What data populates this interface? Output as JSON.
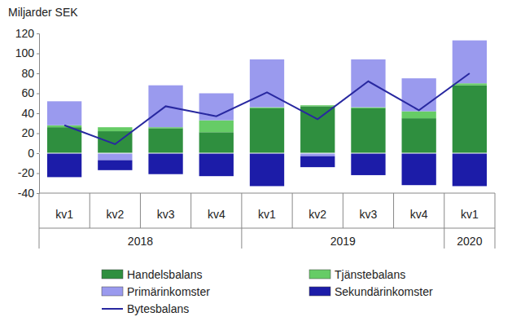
{
  "chart_data": {
    "type": "bar",
    "stacked": true,
    "y_label": "Miljarder SEK",
    "categories": [
      "kv1",
      "kv2",
      "kv3",
      "kv4",
      "kv1",
      "kv2",
      "kv3",
      "kv4",
      "kv1"
    ],
    "category_groups": [
      "2018",
      "2018",
      "2018",
      "2018",
      "2019",
      "2019",
      "2019",
      "2019",
      "2020"
    ],
    "ylim": [
      -40,
      120
    ],
    "yticks": [
      -40,
      -20,
      0,
      20,
      40,
      60,
      80,
      100,
      120
    ],
    "grid": false,
    "legend": "bottom",
    "series": [
      {
        "name": "Handelsbalans",
        "type": "bar",
        "color": "#2f8f3f",
        "values": [
          26,
          22,
          25,
          21,
          45,
          47,
          45,
          35,
          68
        ]
      },
      {
        "name": "Tjänstebalans",
        "type": "bar",
        "color": "#66cc66",
        "values": [
          2,
          4,
          1,
          12,
          1,
          1,
          1,
          7,
          2
        ]
      },
      {
        "name": "Primärinkomster",
        "type": "bar",
        "color": "#9a9aee",
        "values": [
          24,
          -7,
          42,
          27,
          48,
          -3,
          48,
          33,
          43
        ]
      },
      {
        "name": "Sekundärinkomster",
        "type": "bar",
        "color": "#1c1ca8",
        "values": [
          -24,
          -10,
          -21,
          -23,
          -33,
          -11,
          -22,
          -32,
          -33
        ]
      },
      {
        "name": "Bytesbalans",
        "type": "line",
        "color": "#2828a0",
        "values": [
          28,
          9,
          47,
          37,
          61,
          34,
          72,
          43,
          80
        ]
      }
    ]
  }
}
